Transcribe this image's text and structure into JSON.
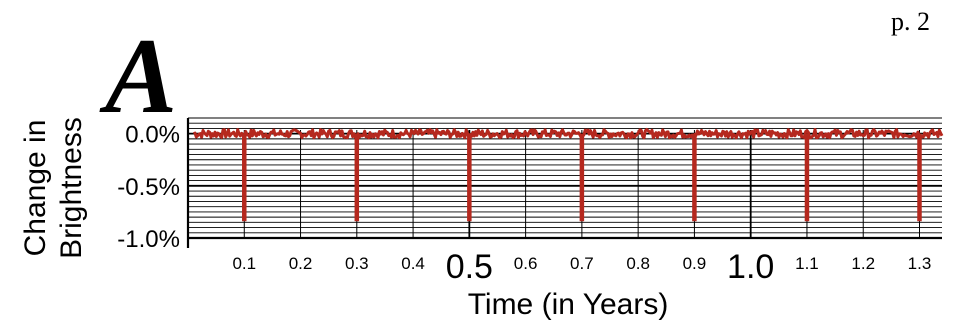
{
  "page": {
    "page_number": "p. 2",
    "panel_label": "A"
  },
  "chart_data": {
    "type": "line",
    "title": "",
    "xlabel": "Time (in Years)",
    "ylabel_lines": [
      "Change in",
      "Brightness"
    ],
    "xlim": [
      0.0,
      1.34
    ],
    "ylim": [
      -1.0,
      0.15
    ],
    "grid": true,
    "y_ticks": [
      {
        "value": 0.0,
        "label": "0.0%"
      },
      {
        "value": -0.5,
        "label": "-0.5%"
      },
      {
        "value": -1.0,
        "label": "-1.0%"
      }
    ],
    "x_ticks": [
      {
        "value": 0.1,
        "label": "0.1",
        "major": false
      },
      {
        "value": 0.2,
        "label": "0.2",
        "major": false
      },
      {
        "value": 0.3,
        "label": "0.3",
        "major": false
      },
      {
        "value": 0.4,
        "label": "0.4",
        "major": false
      },
      {
        "value": 0.5,
        "label": "0.5",
        "major": true
      },
      {
        "value": 0.6,
        "label": "0.6",
        "major": false
      },
      {
        "value": 0.7,
        "label": "0.7",
        "major": false
      },
      {
        "value": 0.8,
        "label": "0.8",
        "major": false
      },
      {
        "value": 0.9,
        "label": "0.9",
        "major": false
      },
      {
        "value": 1.0,
        "label": "1.0",
        "major": true
      },
      {
        "value": 1.1,
        "label": "1.1",
        "major": false
      },
      {
        "value": 1.2,
        "label": "1.2",
        "major": false
      },
      {
        "value": 1.3,
        "label": "1.3",
        "major": false
      }
    ],
    "series": [
      {
        "color": "#b5281e",
        "baseline": 0.0,
        "noise_amplitude": 0.04,
        "transit_times": [
          0.1,
          0.3,
          0.5,
          0.7,
          0.9,
          1.1,
          1.3
        ],
        "transit_depth": -0.84
      }
    ]
  }
}
